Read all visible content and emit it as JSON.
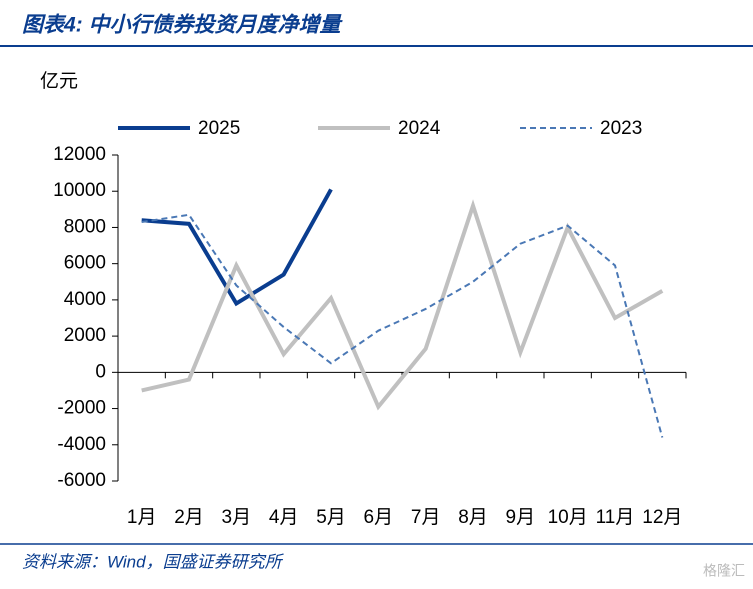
{
  "chart_data": {
    "type": "line",
    "title": "图表4:  中小行债券投资月度净增量",
    "y_label": "亿元",
    "source": "资料来源：Wind，国盛证券研究所",
    "watermark": "格隆汇",
    "categories": [
      "1月",
      "2月",
      "3月",
      "4月",
      "5月",
      "6月",
      "7月",
      "8月",
      "9月",
      "10月",
      "11月",
      "12月"
    ],
    "series": [
      {
        "name": "2025",
        "color": "#0a3d8f",
        "style": "solid",
        "width": 4,
        "values": [
          8400,
          8200,
          3800,
          5400,
          10100,
          null,
          null,
          null,
          null,
          null,
          null,
          null
        ]
      },
      {
        "name": "2024",
        "color": "#c0c0c0",
        "style": "solid",
        "width": 4,
        "values": [
          -1000,
          -400,
          5900,
          1000,
          4100,
          -1900,
          1300,
          9200,
          1100,
          8000,
          3000,
          4500
        ]
      },
      {
        "name": "2023",
        "color": "#4a78b5",
        "style": "dashed",
        "width": 2,
        "values": [
          8300,
          8700,
          4800,
          2500,
          500,
          2300,
          3500,
          5000,
          7100,
          8100,
          5900,
          -3600
        ]
      }
    ],
    "ylim": [
      -6000,
      12000
    ],
    "yticks": [
      -6000,
      -4000,
      -2000,
      0,
      2000,
      4000,
      6000,
      8000,
      10000,
      12000
    ],
    "legend": "top"
  }
}
